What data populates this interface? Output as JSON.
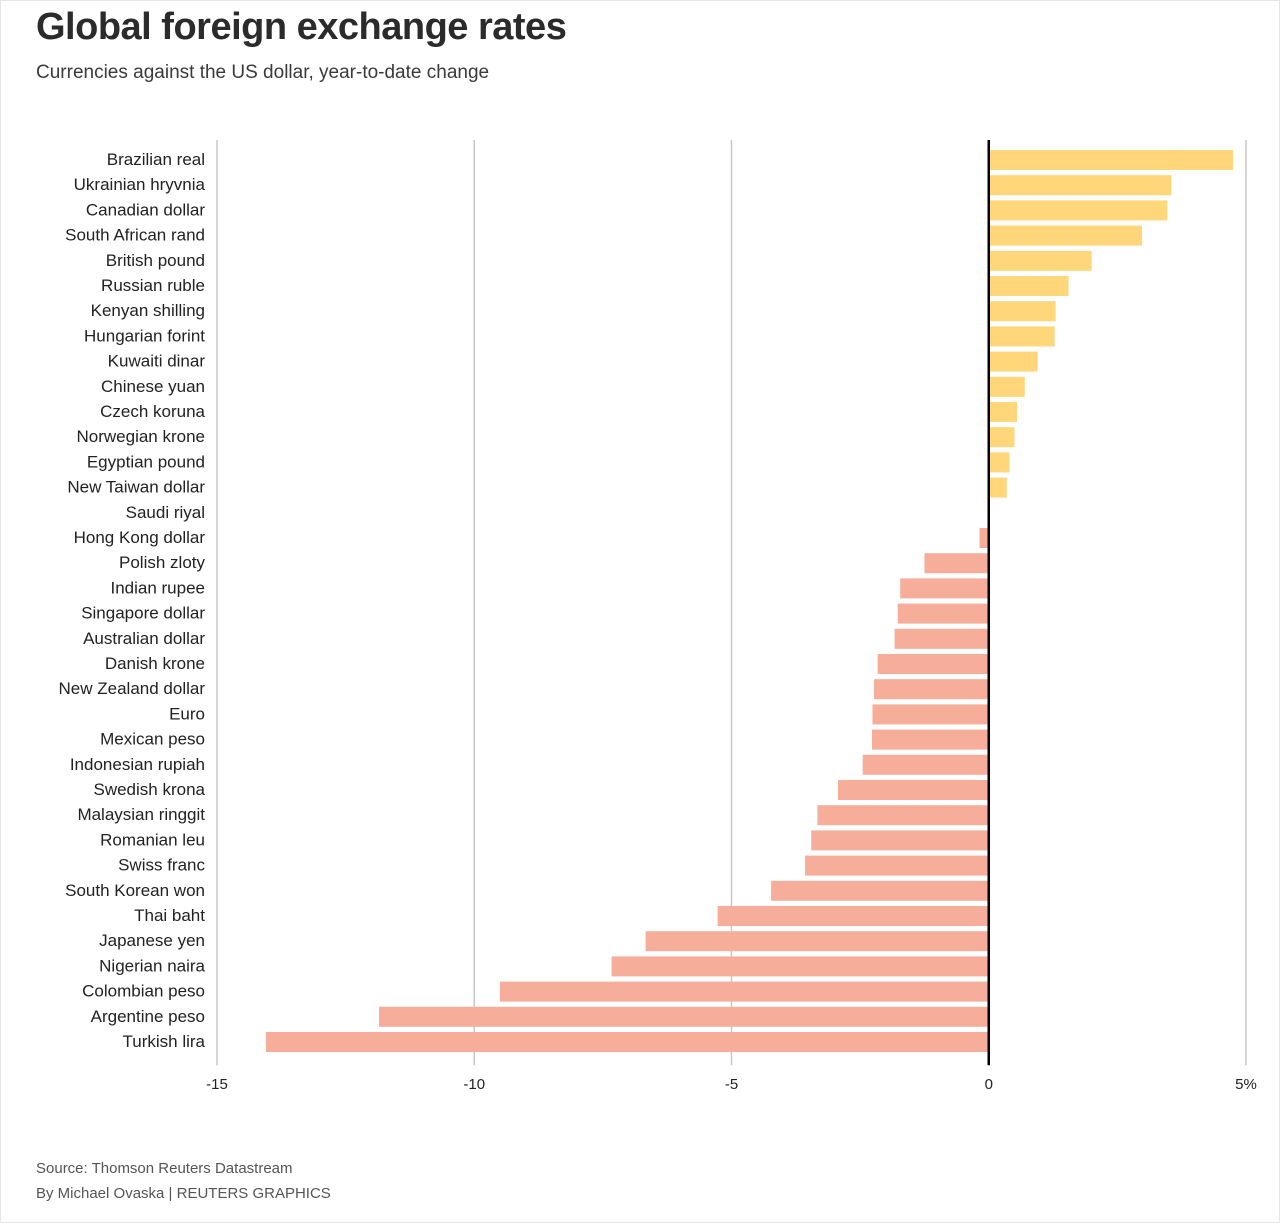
{
  "header": {
    "title": "Global foreign exchange rates",
    "subtitle": "Currencies against the US dollar, year-to-date change"
  },
  "footer": {
    "source": "Source: Thomson Reuters Datastream",
    "byline": "By Michael Ovaska | REUTERS GRAPHICS"
  },
  "colors": {
    "positive_bar": "#ffd679",
    "negative_bar": "#f6ad99",
    "gridline": "#c8c8c8",
    "zero_line": "#000000",
    "text": "#222222"
  },
  "chart_data": {
    "type": "bar",
    "orientation": "horizontal",
    "title": "Global foreign exchange rates",
    "subtitle": "Currencies against the US dollar, year-to-date change",
    "xlabel": "",
    "ylabel": "",
    "xlim": [
      -15,
      5
    ],
    "xticks": [
      -15,
      -10,
      -5,
      0,
      5
    ],
    "xtick_labels": [
      "-15",
      "-10",
      "-5",
      "0",
      "5%"
    ],
    "grid": true,
    "legend": "none",
    "categories": [
      "Brazilian real",
      "Ukrainian hryvnia",
      "Canadian dollar",
      "South African rand",
      "British pound",
      "Russian ruble",
      "Kenyan shilling",
      "Hungarian forint",
      "Kuwaiti dinar",
      "Chinese yuan",
      "Czech koruna",
      "Norwegian krone",
      "Egyptian pound",
      "New Taiwan dollar",
      "Saudi riyal",
      "Hong Kong dollar",
      "Polish zloty",
      "Indian rupee",
      "Singapore dollar",
      "Australian dollar",
      "Danish krone",
      "New Zealand dollar",
      "Euro",
      "Mexican peso",
      "Indonesian rupiah",
      "Swedish krona",
      "Malaysian ringgit",
      "Romanian leu",
      "Swiss franc",
      "South Korean won",
      "Thai baht",
      "Japanese yen",
      "Nigerian naira",
      "Colombian peso",
      "Argentine peso",
      "Turkish lira"
    ],
    "values": [
      4.75,
      3.55,
      3.47,
      2.98,
      2.0,
      1.55,
      1.3,
      1.28,
      0.95,
      0.7,
      0.55,
      0.5,
      0.4,
      0.35,
      0.0,
      -0.18,
      -1.25,
      -1.72,
      -1.77,
      -1.83,
      -2.16,
      -2.23,
      -2.26,
      -2.27,
      -2.45,
      -2.93,
      -3.33,
      -3.45,
      -3.57,
      -4.23,
      -5.27,
      -6.67,
      -7.33,
      -9.5,
      -11.85,
      -14.05
    ]
  }
}
